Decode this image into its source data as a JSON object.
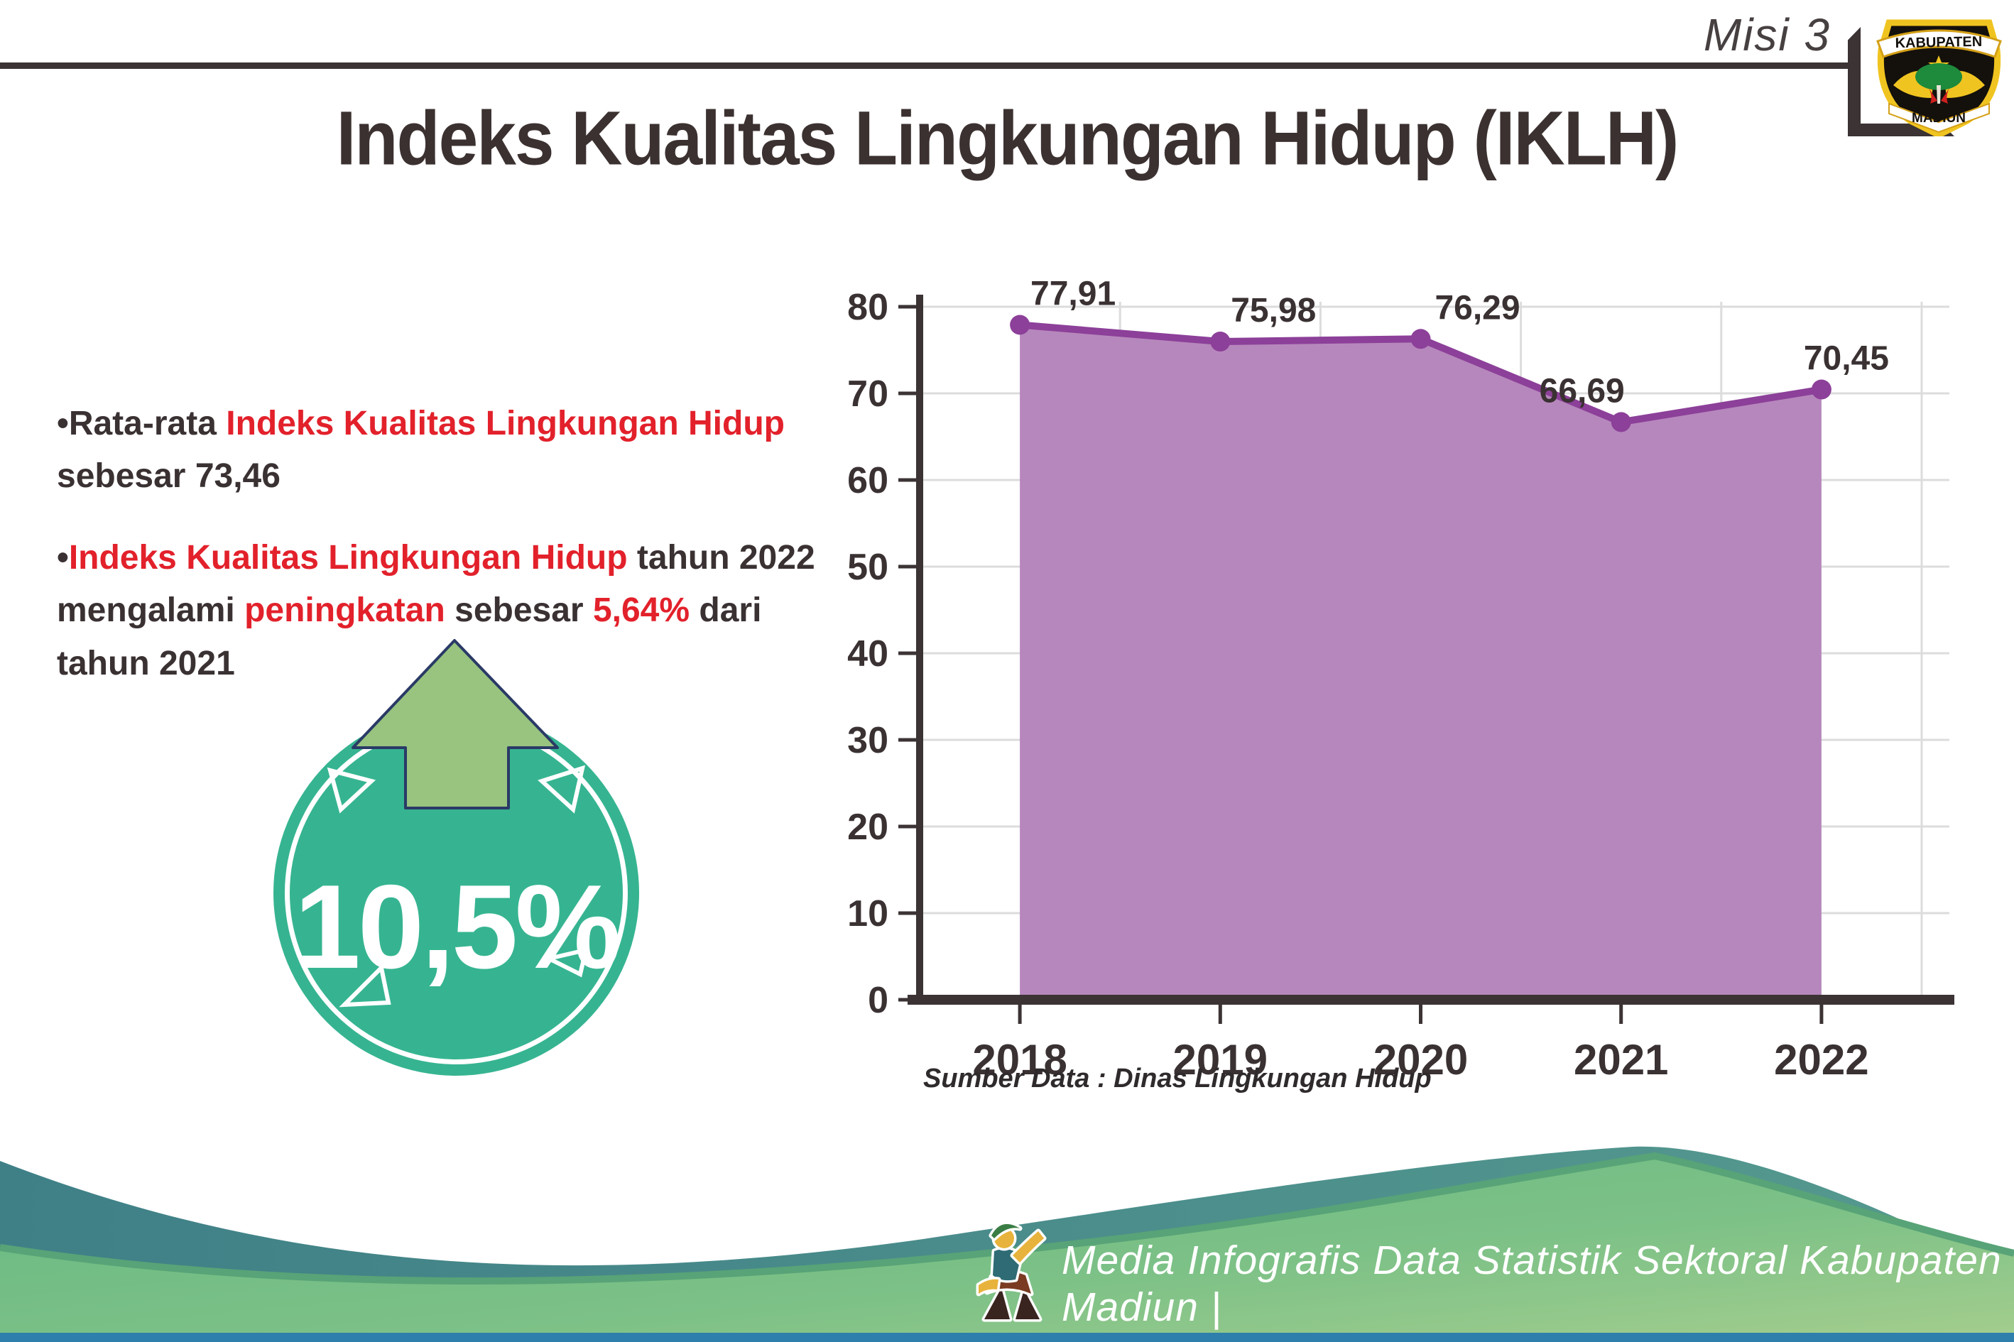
{
  "header": {
    "misi_label": "Misi 3",
    "rule_color": "#3b3334"
  },
  "logo": {
    "top_text": "KABUPATEN",
    "bottom_text": "MADIUN"
  },
  "title": {
    "text": "Indeks Kualitas Lingkungan Hidup (IKLH)",
    "color": "#3b3130"
  },
  "bullets": {
    "dark_color": "#3a3132",
    "accent_color": "#e2212b",
    "items": [
      {
        "segments": [
          {
            "t": "Rata-rata ",
            "c": "dark"
          },
          {
            "t": "Indeks Kualitas Lingkungan Hidup",
            "c": "red"
          },
          {
            "t": " sebesar 73,46",
            "c": "dark"
          }
        ]
      },
      {
        "segments": [
          {
            "t": "Indeks Kualitas Lingkungan Hidup",
            "c": "red"
          },
          {
            "t": " tahun 2022 mengalami ",
            "c": "dark"
          },
          {
            "t": "peningkatan",
            "c": "red"
          },
          {
            "t": " sebesar ",
            "c": "dark"
          },
          {
            "t": "5,64%",
            "c": "red"
          },
          {
            "t": " dari tahun 2021",
            "c": "dark"
          }
        ]
      }
    ]
  },
  "badge": {
    "value": "10,5%",
    "circle_color": "#36b491",
    "arrow_color": "#98c47f",
    "arrow_outline": "#2a3a66",
    "text_color": "#ffffff"
  },
  "chart_data": {
    "type": "area",
    "title": "",
    "categories": [
      "2018",
      "2019",
      "2020",
      "2021",
      "2022"
    ],
    "values": [
      77.91,
      75.98,
      76.29,
      66.69,
      70.45
    ],
    "value_labels": [
      "77,91",
      "75,98",
      "76,29",
      "66,69",
      "70,45"
    ],
    "xlabel": "",
    "ylabel": "",
    "ylim": [
      0,
      80
    ],
    "yticks": [
      0,
      10,
      20,
      30,
      40,
      50,
      60,
      70,
      80
    ],
    "grid": true,
    "legend": "none",
    "area_fill": "#b687bc",
    "line_color": "#8c4099",
    "marker_color": "#8c4099",
    "axis_color": "#3b3334",
    "grid_color": "#dcdcdc",
    "label_color": "#3a3132",
    "source_note": "Sumber Data : Dinas Lingkungan Hidup"
  },
  "footer": {
    "text": "Media Infografis Data Statistik Sektoral Kabupaten Madiun |",
    "text_color": "#ffffff",
    "wave_teal": "#3f8087",
    "wave_teal_right": "#55998f",
    "wave_green": "#6cbc84",
    "wave_green_light": "#a4ce8e",
    "wave_green_edge": "#58a377",
    "bottom_bar": "#2f7fad"
  }
}
